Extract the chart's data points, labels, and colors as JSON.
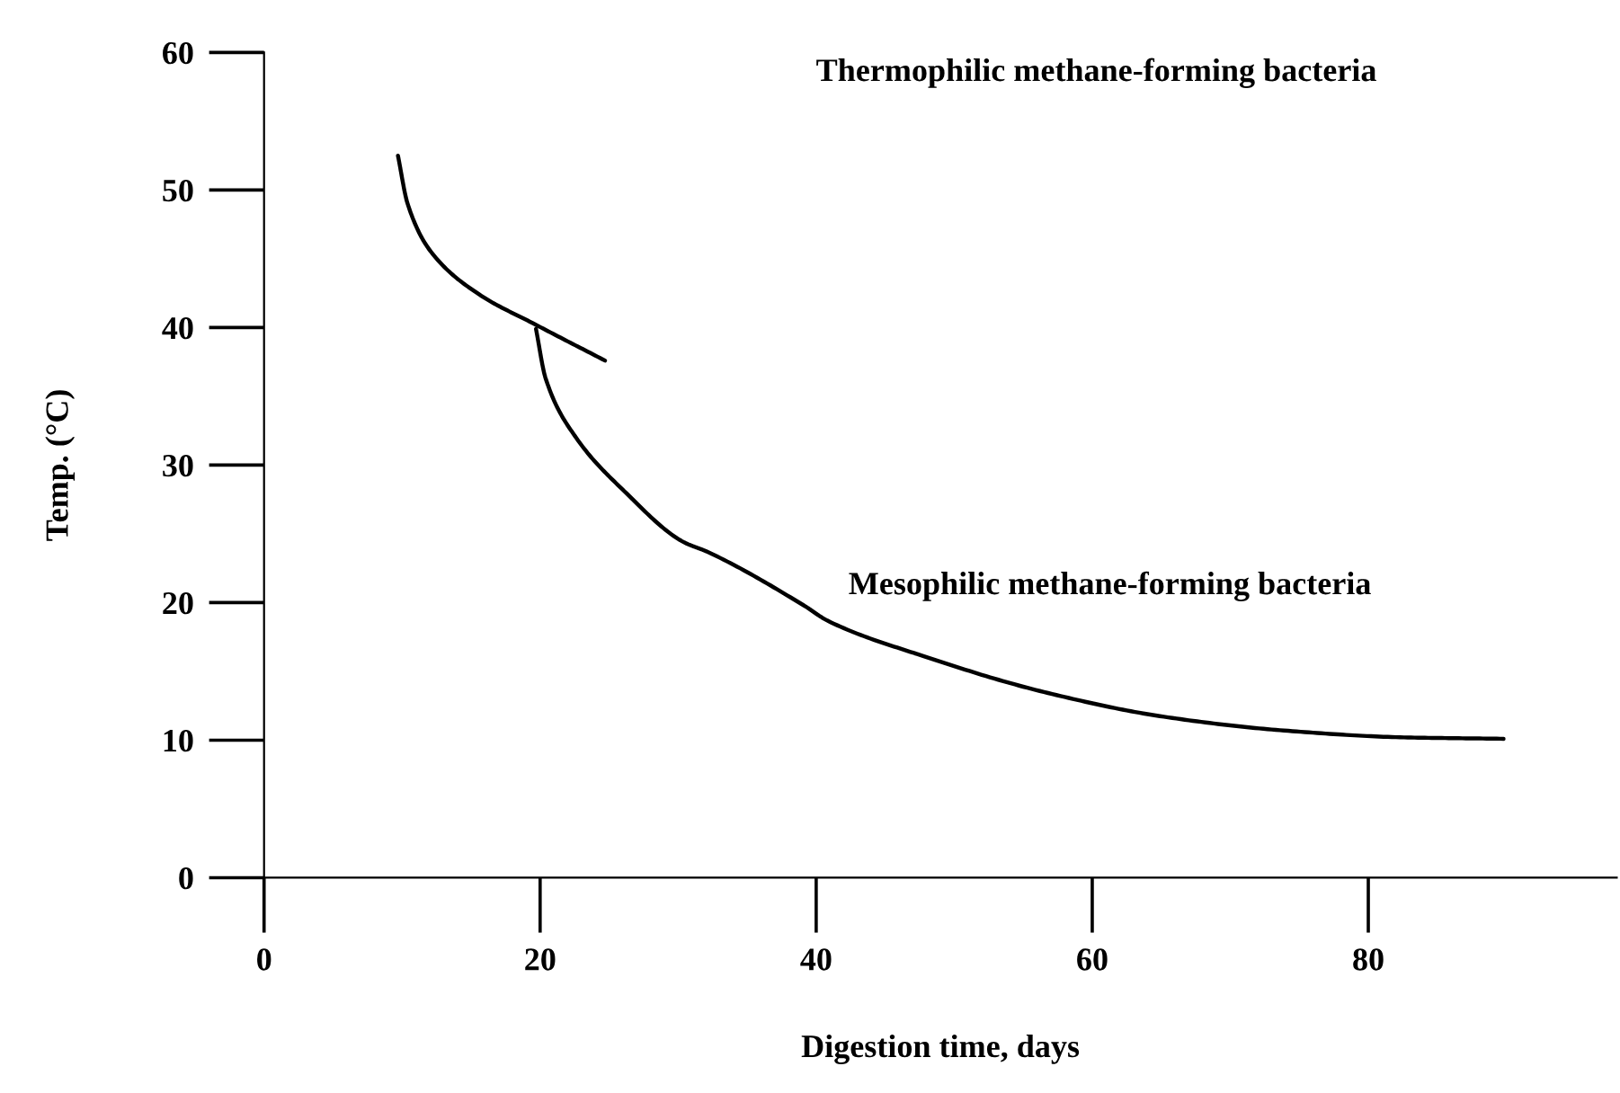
{
  "chart_data": {
    "type": "line",
    "xlabel": "Digestion time, days",
    "ylabel": "Temp. (°C)",
    "xlim": [
      0,
      98
    ],
    "ylim": [
      0,
      60
    ],
    "xticks": [
      0,
      20,
      40,
      60,
      80
    ],
    "yticks": [
      0,
      10,
      20,
      30,
      40,
      50,
      60
    ],
    "annotations": [
      "Thermophilic methane-forming bacteria",
      "Mesophilic methane-forming bacteria"
    ],
    "grid": false,
    "legend": false,
    "marker": "none",
    "line_style": "solid",
    "series": [
      {
        "color": "#000000",
        "x": [
          9.7,
          10.4,
          12.1,
          15.6,
          19.5,
          24.7
        ],
        "values": [
          52.5,
          49,
          45.5,
          42.4,
          40.3,
          37.6
        ]
      },
      {
        "color": "#000000",
        "x": [
          19.7,
          20.4,
          22.6,
          26.1,
          30.4,
          32.1,
          39.1,
          40.8,
          47.8,
          56.5,
          65.2,
          73.9,
          82.6,
          89.8
        ],
        "values": [
          39.9,
          36.3,
          32,
          28.1,
          24.4,
          23.7,
          19.8,
          18.7,
          16.1,
          13.5,
          11.7,
          10.7,
          10.2,
          10.1
        ]
      }
    ]
  }
}
